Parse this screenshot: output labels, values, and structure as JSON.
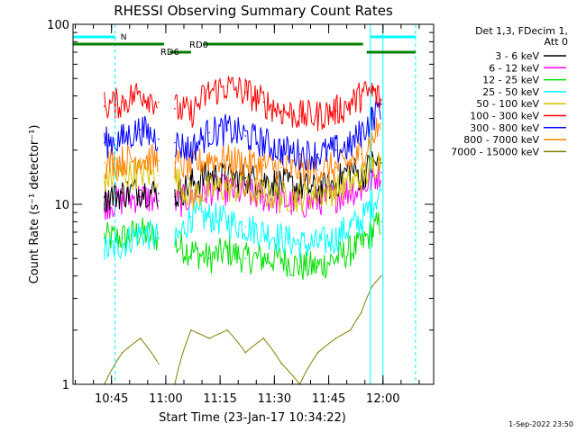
{
  "chart_data": {
    "type": "line",
    "title": "RHESSI Observing Summary Count Rates",
    "xlabel": "Start Time (23-Jan-17 10:34:22)",
    "ylabel": "Count Rate (s⁻¹ detector⁻¹)",
    "yscale": "log",
    "xlim": [
      "10:34:22",
      "12:14:00"
    ],
    "ylim": [
      1,
      100
    ],
    "x_ticks": [
      "10:45",
      "11:00",
      "11:15",
      "11:30",
      "11:45",
      "12:00"
    ],
    "y_ticks": [
      "1",
      "10",
      "100"
    ],
    "grid": false,
    "legend": {
      "placement": "right",
      "header": [
        "Det 1,3, FDecim 1,",
        "Att 0"
      ]
    },
    "segment_labels": [
      "N",
      "RD0",
      "RD6"
    ],
    "segment_colors": {
      "night": "#00ffff",
      "saa": "#008000"
    },
    "footer": "1-Sep-2022 23:50",
    "series": [
      {
        "name": "3 - 6 keV",
        "color": "#000000",
        "x": [
          "10:43:00",
          "10:48:00",
          "10:53:00",
          "10:58:00",
          "11:02:30",
          "11:07:00",
          "11:12:00",
          "11:17:00",
          "11:22:00",
          "11:27:00",
          "11:32:00",
          "11:37:00",
          "11:42:00",
          "11:47:00",
          "11:51:00",
          "11:54:00",
          "11:57:00",
          "11:59:30"
        ],
        "values": [
          11,
          11.5,
          12,
          11.5,
          11,
          13,
          14.5,
          14,
          14,
          13.5,
          13,
          12.5,
          12,
          13,
          16,
          14,
          17,
          17
        ]
      },
      {
        "name": "6 - 12 keV",
        "color": "#ff00ff",
        "x": [
          "10:43:00",
          "10:48:00",
          "10:53:00",
          "10:58:00",
          "11:02:30",
          "11:07:00",
          "11:12:00",
          "11:17:00",
          "11:22:00",
          "11:27:00",
          "11:32:00",
          "11:37:00",
          "11:42:00",
          "11:47:00",
          "11:51:00",
          "11:54:00",
          "11:57:00",
          "11:59:30"
        ],
        "values": [
          10,
          10.5,
          11,
          10.5,
          10,
          11,
          12,
          12,
          11.5,
          11,
          10.5,
          10,
          10.5,
          11,
          12,
          12,
          14,
          15
        ]
      },
      {
        "name": "12 - 25 keV",
        "color": "#00e000",
        "x": [
          "10:43:00",
          "10:48:00",
          "10:53:00",
          "10:58:00",
          "11:02:30",
          "11:07:00",
          "11:12:00",
          "11:17:00",
          "11:22:00",
          "11:27:00",
          "11:32:00",
          "11:37:00",
          "11:42:00",
          "11:47:00",
          "11:51:00",
          "11:54:00",
          "11:57:00",
          "11:59:30"
        ],
        "values": [
          6.5,
          6.5,
          7,
          6.5,
          6,
          5.5,
          5,
          5.5,
          5,
          5,
          5,
          4.5,
          4.5,
          5,
          5.5,
          6,
          7,
          8
        ]
      },
      {
        "name": "25 - 50 keV",
        "color": "#00ffff",
        "x": [
          "10:43:00",
          "10:48:00",
          "10:53:00",
          "10:58:00",
          "11:02:30",
          "11:07:00",
          "11:12:00",
          "11:17:00",
          "11:22:00",
          "11:27:00",
          "11:32:00",
          "11:37:00",
          "11:42:00",
          "11:47:00",
          "11:51:00",
          "11:54:00",
          "11:57:00",
          "11:59:30"
        ],
        "values": [
          5.5,
          6,
          7,
          6.5,
          6,
          8.5,
          8.5,
          8,
          7.5,
          7,
          6.5,
          6,
          6,
          6.5,
          7.5,
          8,
          10,
          12
        ]
      },
      {
        "name": "50 - 100 keV",
        "color": "#d8c000",
        "x": [
          "10:43:00",
          "10:48:00",
          "10:53:00",
          "10:58:00",
          "11:02:30",
          "11:07:00",
          "11:12:00",
          "11:17:00",
          "11:22:00",
          "11:27:00",
          "11:32:00",
          "11:37:00",
          "11:42:00",
          "11:47:00",
          "11:51:00",
          "11:54:00",
          "11:57:00",
          "11:59:30"
        ],
        "values": [
          14,
          14.5,
          15,
          14.5,
          14,
          11,
          12,
          12.5,
          12,
          11.5,
          11,
          11,
          11.5,
          12,
          13,
          14,
          16,
          18
        ]
      },
      {
        "name": "100 - 300 keV",
        "color": "#ff0000",
        "x": [
          "10:43:00",
          "10:48:00",
          "10:53:00",
          "10:58:00",
          "11:02:30",
          "11:07:00",
          "11:12:00",
          "11:17:00",
          "11:22:00",
          "11:27:00",
          "11:32:00",
          "11:37:00",
          "11:42:00",
          "11:47:00",
          "11:51:00",
          "11:54:00",
          "11:57:00",
          "11:59:30"
        ],
        "values": [
          35,
          37,
          42,
          37,
          34,
          32,
          42,
          45,
          42,
          37,
          33,
          31,
          31,
          33,
          36,
          40,
          42,
          38
        ]
      },
      {
        "name": "300 - 800 keV",
        "color": "#0000ff",
        "x": [
          "10:43:00",
          "10:48:00",
          "10:53:00",
          "10:58:00",
          "11:02:30",
          "11:07:00",
          "11:12:00",
          "11:17:00",
          "11:22:00",
          "11:27:00",
          "11:32:00",
          "11:37:00",
          "11:42:00",
          "11:47:00",
          "11:51:00",
          "11:54:00",
          "11:57:00",
          "11:59:30"
        ],
        "values": [
          22,
          23,
          26,
          23,
          22,
          20,
          25,
          26,
          24,
          22,
          20,
          19,
          19,
          20,
          21,
          25,
          30,
          36
        ]
      },
      {
        "name": "800 - 7000 keV",
        "color": "#ff8000",
        "x": [
          "10:43:00",
          "10:48:00",
          "10:53:00",
          "10:58:00",
          "11:02:30",
          "11:07:00",
          "11:12:00",
          "11:17:00",
          "11:22:00",
          "11:27:00",
          "11:32:00",
          "11:37:00",
          "11:42:00",
          "11:47:00",
          "11:51:00",
          "11:54:00",
          "11:57:00",
          "11:59:30"
        ],
        "values": [
          17,
          17.5,
          18,
          17.5,
          17,
          16,
          18,
          17.5,
          17,
          16.5,
          16,
          15.5,
          15.5,
          16,
          17,
          19,
          23,
          28
        ]
      },
      {
        "name": "7000 - 15000 keV",
        "color": "#808000",
        "x": [
          "10:43:00",
          "10:48:00",
          "10:53:00",
          "10:58:00",
          "11:02:30",
          "11:07:00",
          "11:12:00",
          "11:17:00",
          "11:22:00",
          "11:27:00",
          "11:32:00",
          "11:37:00",
          "11:42:00",
          "11:47:00",
          "11:51:00",
          "11:54:00",
          "11:57:00",
          "11:59:30"
        ],
        "values": [
          1,
          1.5,
          1.8,
          1.3,
          1,
          2,
          1.8,
          2,
          1.5,
          1.8,
          1.3,
          1,
          1.5,
          1.8,
          2,
          2.5,
          3.5,
          4
        ]
      }
    ]
  }
}
